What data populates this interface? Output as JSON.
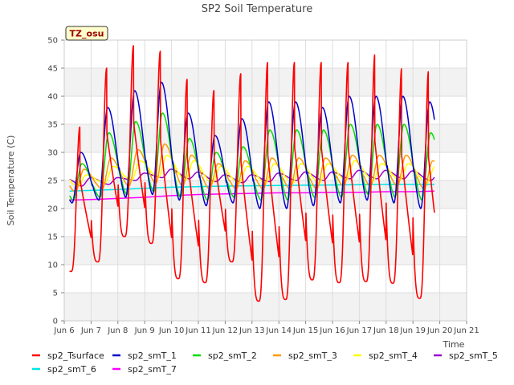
{
  "chart_data": {
    "type": "line",
    "title": "SP2 Soil Temperature",
    "xlabel": "Time",
    "ylabel": "Soil Temperature (C)",
    "badge": "TZ_osu",
    "xlim": [
      6,
      21
    ],
    "ylim": [
      0,
      50
    ],
    "x_ticks": [
      6,
      7,
      8,
      9,
      10,
      11,
      12,
      13,
      14,
      15,
      16,
      17,
      18,
      19,
      20,
      21
    ],
    "x_tick_labels": [
      "Jun 6",
      "Jun 7",
      "Jun 8",
      "Jun 9",
      "Jun 10",
      "Jun 11",
      "Jun 12",
      "Jun 13",
      "Jun 14",
      "Jun 15",
      "Jun 16",
      "Jun 17",
      "Jun 18",
      "Jun 19",
      "Jun 20",
      "Jun 21"
    ],
    "y_ticks": [
      0,
      5,
      10,
      15,
      20,
      25,
      30,
      35,
      40,
      45,
      50
    ],
    "grid": true,
    "legend_position": "bottom",
    "daily_max": {
      "days": [
        6,
        7,
        8,
        9,
        10,
        11,
        12,
        13,
        14,
        15,
        16,
        17,
        18,
        19
      ],
      "sp2_Tsurface": [
        34.5,
        45,
        49,
        48,
        43,
        41,
        44,
        46,
        46,
        46,
        46,
        47.5,
        45,
        44.5
      ],
      "sp2_smT_1": [
        30,
        38,
        41,
        42.5,
        37,
        33,
        36,
        39,
        39,
        38,
        40,
        40,
        40,
        39
      ],
      "sp2_smT_2": [
        28,
        33.5,
        35.5,
        37,
        32.5,
        30,
        31,
        34,
        34,
        34,
        35,
        35,
        35,
        33.5
      ],
      "sp2_smT_3": [
        27,
        29,
        30.5,
        31.5,
        29.5,
        28,
        28.5,
        29,
        29,
        29,
        29.5,
        29.5,
        29.5,
        28.5
      ],
      "sp2_smT_4": [
        26,
        27.5,
        28.5,
        29.5,
        28.5,
        27.5,
        27.5,
        28,
        28,
        28,
        28.5,
        28,
        28,
        27.5
      ],
      "sp2_smT_5": [
        25.5,
        25.5,
        26.3,
        27,
        26.5,
        26,
        26,
        26.3,
        26.5,
        26.5,
        26.8,
        26.8,
        26.7,
        26.3
      ]
    },
    "daily_min": {
      "days": [
        6,
        7,
        8,
        9,
        10,
        11,
        12,
        13,
        14,
        15,
        16,
        17,
        18,
        19
      ],
      "sp2_Tsurface": [
        8.8,
        10.5,
        15,
        13.8,
        7.5,
        6.8,
        10.5,
        3.5,
        3.8,
        7.3,
        6.8,
        7,
        6.7,
        4
      ],
      "sp2_smT_1": [
        21,
        21.5,
        22,
        22.5,
        21.5,
        20.5,
        21,
        20,
        20,
        20.5,
        21,
        21.5,
        21,
        20
      ],
      "sp2_smT_2": [
        21.5,
        22,
        22.5,
        23,
        22,
        21.5,
        22,
        21.5,
        21.5,
        22,
        22,
        22.5,
        22,
        21.5
      ],
      "sp2_smT_3": [
        23,
        23.5,
        24,
        24.5,
        24,
        23.5,
        23.5,
        23.5,
        23.5,
        23.5,
        24,
        24,
        24,
        23.5
      ],
      "sp2_smT_4": [
        24,
        24.5,
        25,
        25.5,
        25,
        24.5,
        24.5,
        24.5,
        24.5,
        24.5,
        25,
        25,
        25,
        24.5
      ],
      "sp2_smT_5": [
        24,
        24.3,
        25,
        25.5,
        25.3,
        24.8,
        24.6,
        24.8,
        25,
        25,
        25.3,
        25.3,
        25.3,
        25
      ]
    },
    "series": [
      {
        "name": "sp2_Tsurface",
        "color": "#ff0000",
        "type": "diurnal",
        "key": "sp2_Tsurface",
        "lag": 0.0,
        "sharp": true
      },
      {
        "name": "sp2_smT_1",
        "color": "#0000cc",
        "type": "diurnal",
        "key": "sp2_smT_1",
        "lag": 0.04,
        "sharp": false
      },
      {
        "name": "sp2_smT_2",
        "color": "#00dd00",
        "type": "diurnal",
        "key": "sp2_smT_2",
        "lag": 0.08,
        "sharp": false
      },
      {
        "name": "sp2_smT_3",
        "color": "#ff9900",
        "type": "diurnal",
        "key": "sp2_smT_3",
        "lag": 0.16,
        "sharp": false
      },
      {
        "name": "sp2_smT_4",
        "color": "#ffff00",
        "type": "diurnal",
        "key": "sp2_smT_4",
        "lag": 0.25,
        "sharp": false
      },
      {
        "name": "sp2_smT_5",
        "color": "#9900cc",
        "type": "diurnal",
        "key": "sp2_smT_5",
        "lag": 0.4,
        "sharp": false
      },
      {
        "name": "sp2_smT_6",
        "color": "#00e5e5",
        "type": "trend",
        "x": [
          6.2,
          8,
          9,
          10,
          12,
          14,
          16,
          18,
          19.8
        ],
        "y": [
          23.1,
          23.4,
          23.6,
          23.8,
          24.0,
          24.1,
          24.2,
          24.3,
          24.3
        ]
      },
      {
        "name": "sp2_smT_7",
        "color": "#ff00ff",
        "type": "trend",
        "x": [
          6.2,
          7,
          8,
          9,
          10,
          11,
          12,
          13,
          14,
          15,
          16,
          17,
          18,
          19,
          19.8
        ],
        "y": [
          21.5,
          21.6,
          21.8,
          22.0,
          22.3,
          22.5,
          22.6,
          22.7,
          22.8,
          22.8,
          22.9,
          22.9,
          23.0,
          23.0,
          23.1
        ]
      }
    ],
    "series_start": 6.2,
    "series_end": 19.8
  }
}
